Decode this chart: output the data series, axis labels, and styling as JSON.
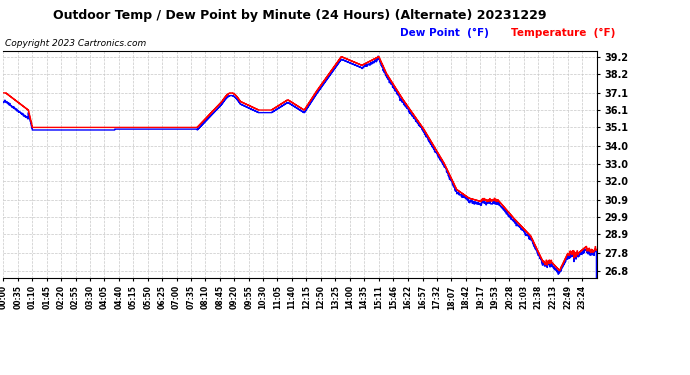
{
  "title": "Outdoor Temp / Dew Point by Minute (24 Hours) (Alternate) 20231229",
  "copyright": "Copyright 2023 Cartronics.com",
  "legend_dew": "Dew Point  (°F)",
  "legend_temp": "Temperature  (°F)",
  "dew_color": "#0000ff",
  "temp_color": "#ff0000",
  "bg_color": "#ffffff",
  "grid_color": "#c8c8c8",
  "yticks": [
    26.8,
    27.8,
    28.9,
    29.9,
    30.9,
    32.0,
    33.0,
    34.0,
    35.1,
    36.1,
    37.1,
    38.2,
    39.2
  ],
  "ylim": [
    26.4,
    39.55
  ],
  "xtick_labels": [
    "00:00",
    "00:35",
    "01:10",
    "01:45",
    "02:20",
    "02:55",
    "03:30",
    "04:05",
    "04:40",
    "05:15",
    "05:50",
    "06:25",
    "07:00",
    "07:35",
    "08:10",
    "08:45",
    "09:20",
    "09:55",
    "10:30",
    "11:05",
    "11:40",
    "12:15",
    "12:50",
    "13:25",
    "14:00",
    "14:35",
    "15:11",
    "15:46",
    "16:22",
    "16:57",
    "17:32",
    "18:07",
    "18:42",
    "19:17",
    "19:53",
    "20:28",
    "21:03",
    "21:38",
    "22:13",
    "22:49",
    "23:24"
  ],
  "line_width": 1.0,
  "title_fontsize": 9,
  "copyright_fontsize": 6.5,
  "ytick_fontsize": 7,
  "xtick_fontsize": 5.5,
  "legend_fontsize": 7.5
}
